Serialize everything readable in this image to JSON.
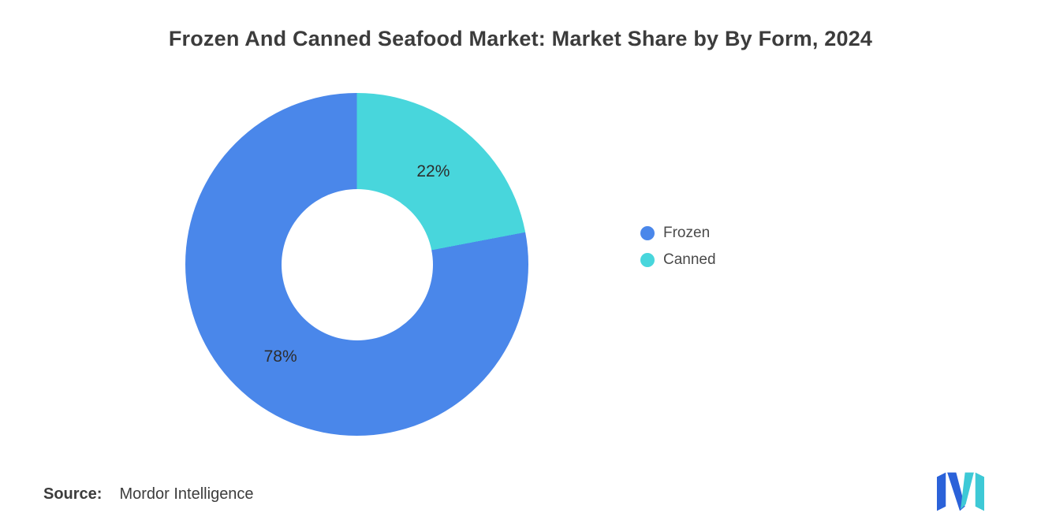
{
  "title": "Frozen And Canned Seafood Market: Market Share by By Form, 2024",
  "chart_data": {
    "type": "pie",
    "subtype": "donut",
    "title": "Frozen And Canned Seafood Market: Market Share by By Form, 2024",
    "unit": "%",
    "start_angle_deg": 0,
    "direction": "clockwise",
    "legend_position": "right",
    "slices": [
      {
        "label": "Canned",
        "value": 22,
        "value_label": "22%",
        "color": "#48D6DC"
      },
      {
        "label": "Frozen",
        "value": 78,
        "value_label": "78%",
        "color": "#4A87EA"
      }
    ]
  },
  "legend": {
    "items": [
      {
        "label": "Frozen",
        "color": "#4A87EA"
      },
      {
        "label": "Canned",
        "color": "#48D6DC"
      }
    ]
  },
  "footer": {
    "source_label": "Source:",
    "source_value": "Mordor Intelligence"
  },
  "logo": {
    "name": "mordor-intelligence-logo",
    "colors": {
      "blue": "#2B62D9",
      "teal": "#3EC9D6"
    }
  }
}
